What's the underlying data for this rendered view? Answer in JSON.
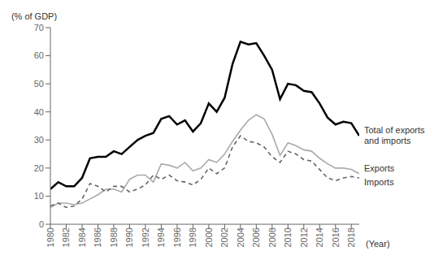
{
  "chart_data": {
    "type": "line",
    "xlabel": "(Year)",
    "ylabel": "(% of GDP)",
    "x": [
      1980,
      1981,
      1982,
      1983,
      1984,
      1985,
      1986,
      1987,
      1988,
      1989,
      1990,
      1991,
      1992,
      1993,
      1994,
      1995,
      1996,
      1997,
      1998,
      1999,
      2000,
      2001,
      2002,
      2003,
      2004,
      2005,
      2006,
      2007,
      2008,
      2009,
      2010,
      2011,
      2012,
      2013,
      2014,
      2015,
      2016,
      2017,
      2018,
      2019
    ],
    "series": [
      {
        "name": "Total of exports\nand imports",
        "color": "#000000",
        "line_style": "solid",
        "values": [
          12.5,
          15.0,
          13.5,
          13.5,
          16.5,
          23.5,
          24.0,
          24.0,
          26.0,
          25.0,
          27.5,
          30.0,
          31.5,
          32.5,
          37.5,
          38.5,
          35.5,
          37.0,
          33.0,
          36.0,
          43.0,
          40.0,
          45.0,
          57.0,
          65.0,
          64.0,
          64.5,
          60.0,
          55.0,
          44.5,
          50.0,
          49.5,
          47.5,
          47.0,
          43.0,
          38.0,
          35.5,
          36.5,
          36.0,
          31.5
        ]
      },
      {
        "name": "Exports",
        "color": "#aaaaaa",
        "line_style": "solid",
        "values": [
          6.0,
          7.5,
          7.5,
          7.0,
          7.5,
          9.0,
          10.5,
          12.5,
          12.5,
          11.5,
          16.0,
          17.5,
          17.5,
          15.0,
          21.5,
          21.0,
          20.0,
          22.0,
          19.0,
          20.0,
          23.0,
          22.0,
          25.0,
          29.5,
          33.5,
          37.0,
          39.0,
          37.5,
          32.0,
          24.5,
          29.0,
          28.0,
          26.5,
          26.0,
          23.5,
          21.5,
          20.0,
          20.0,
          19.5,
          18.0
        ]
      },
      {
        "name": "Imports",
        "color": "#666666",
        "line_style": "dashed",
        "values": [
          6.5,
          7.5,
          6.0,
          6.5,
          9.0,
          14.5,
          13.5,
          11.5,
          13.5,
          13.5,
          11.5,
          12.5,
          14.0,
          17.5,
          16.0,
          17.5,
          15.5,
          15.0,
          14.0,
          16.0,
          20.0,
          18.0,
          20.0,
          27.5,
          31.5,
          29.5,
          29.0,
          27.5,
          24.0,
          22.0,
          26.0,
          25.0,
          23.0,
          22.5,
          19.5,
          16.5,
          15.5,
          16.5,
          17.0,
          16.5
        ]
      }
    ],
    "xlim": [
      1980,
      2019
    ],
    "xticks": [
      1980,
      1982,
      1984,
      1986,
      1988,
      1990,
      1992,
      1994,
      1996,
      1998,
      2000,
      2002,
      2004,
      2006,
      2008,
      2010,
      2012,
      2014,
      2016,
      2018
    ],
    "ylim": [
      0,
      70
    ],
    "yticks": [
      0,
      10,
      20,
      30,
      40,
      50,
      60,
      70
    ],
    "grid": false
  }
}
